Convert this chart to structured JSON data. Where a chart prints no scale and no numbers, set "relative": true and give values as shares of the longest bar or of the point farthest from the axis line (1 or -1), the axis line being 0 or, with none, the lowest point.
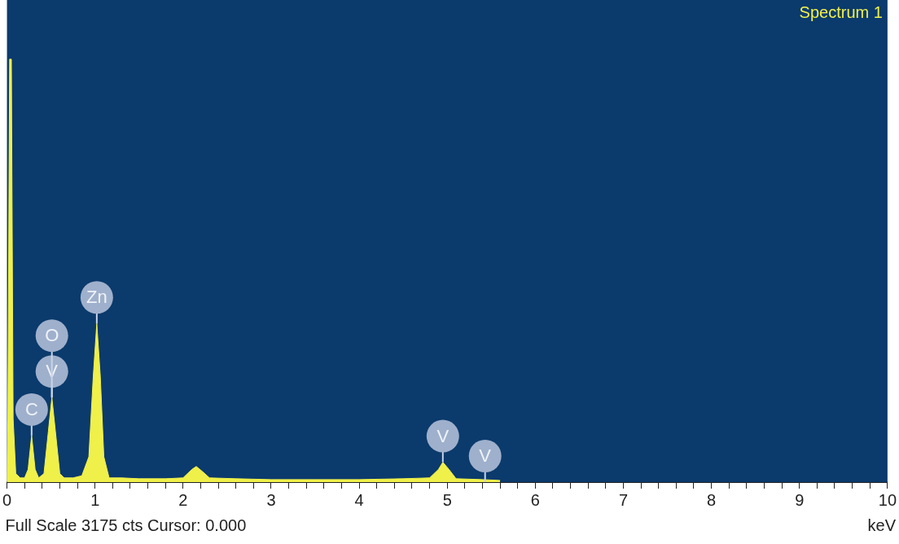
{
  "chart_data": {
    "type": "area",
    "relative": true,
    "xlabel": "keV",
    "xlim": [
      0,
      10
    ],
    "xticks": [
      0,
      {
        "value": 0.2,
        "label": null
      },
      {
        "value": 0.4,
        "label": null
      },
      {
        "value": 0.6,
        "label": null
      },
      {
        "value": 0.8,
        "label": null
      },
      1,
      {
        "value": 1.2,
        "label": null
      },
      {
        "value": 1.4,
        "label": null
      },
      {
        "value": 1.6,
        "label": null
      },
      {
        "value": 1.8,
        "label": null
      },
      2,
      {
        "value": 2.2,
        "label": null
      },
      {
        "value": 2.4,
        "label": null
      },
      {
        "value": 2.6,
        "label": null
      },
      {
        "value": 2.8,
        "label": null
      },
      3,
      {
        "value": 3.2,
        "label": null
      },
      {
        "value": 3.4,
        "label": null
      },
      {
        "value": 3.6,
        "label": null
      },
      {
        "value": 3.8,
        "label": null
      },
      4,
      {
        "value": 4.2,
        "label": null
      },
      {
        "value": 4.4,
        "label": null
      },
      {
        "value": 4.6,
        "label": null
      },
      {
        "value": 4.8,
        "label": null
      },
      5,
      {
        "value": 5.2,
        "label": null
      },
      {
        "value": 5.4,
        "label": null
      },
      {
        "value": 5.6,
        "label": null
      },
      {
        "value": 5.8,
        "label": null
      },
      6,
      {
        "value": 6.2,
        "label": null
      },
      {
        "value": 6.4,
        "label": null
      },
      {
        "value": 6.6,
        "label": null
      },
      {
        "value": 6.8,
        "label": null
      },
      7,
      {
        "value": 7.2,
        "label": null
      },
      {
        "value": 7.4,
        "label": null
      },
      {
        "value": 7.6,
        "label": null
      },
      {
        "value": 7.8,
        "label": null
      },
      8,
      {
        "value": 8.2,
        "label": null
      },
      {
        "value": 8.4,
        "label": null
      },
      {
        "value": 8.6,
        "label": null
      },
      {
        "value": 8.8,
        "label": null
      },
      9,
      {
        "value": 9.2,
        "label": null
      },
      {
        "value": 9.4,
        "label": null
      },
      {
        "value": 9.6,
        "label": null
      },
      {
        "value": 9.8,
        "label": null
      },
      10
    ],
    "x": [
      0,
      0.01,
      0.03,
      0.05,
      0.07,
      0.1,
      0.15,
      0.2,
      0.24,
      0.28,
      0.32,
      0.36,
      0.42,
      0.47,
      0.51,
      0.55,
      0.6,
      0.65,
      0.75,
      0.85,
      0.93,
      0.98,
      1.02,
      1.06,
      1.1,
      1.16,
      1.3,
      1.5,
      1.8,
      2.0,
      2.1,
      2.15,
      2.22,
      2.3,
      2.6,
      3.0,
      3.5,
      4.0,
      4.5,
      4.8,
      4.9,
      4.95,
      5.02,
      5.1,
      5.4,
      5.6
    ],
    "series": [
      {
        "color": "#f0f04a",
        "values": [
          0,
          0.15,
          1,
          1,
          0.15,
          0.02,
          0.01,
          0.01,
          0.03,
          0.11,
          0.03,
          0.01,
          0.02,
          0.12,
          0.2,
          0.12,
          0.02,
          0.01,
          0.01,
          0.015,
          0.06,
          0.25,
          0.375,
          0.25,
          0.06,
          0.01,
          0.01,
          0.008,
          0.008,
          0.01,
          0.03,
          0.037,
          0.025,
          0.01,
          0.008,
          0.006,
          0.006,
          0.006,
          0.008,
          0.01,
          0.03,
          0.047,
          0.03,
          0.008,
          0.006,
          0.004
        ]
      }
    ],
    "annotations": [
      "Spectrum 1",
      "Full Scale 3175 cts Cursor: 0.000",
      {
        "text": "C",
        "x": 0.28,
        "y": 0.11
      },
      {
        "text": "V",
        "x": 0.51,
        "y": 0.2
      },
      {
        "text": "O",
        "x": 0.51,
        "y": 0.2
      },
      {
        "text": "Zn",
        "x": 1.02,
        "y": 0.375
      },
      {
        "text": "V",
        "x": 4.95,
        "y": 0.047
      },
      {
        "text": "V",
        "x": 5.43,
        "y": 0
      }
    ]
  }
}
